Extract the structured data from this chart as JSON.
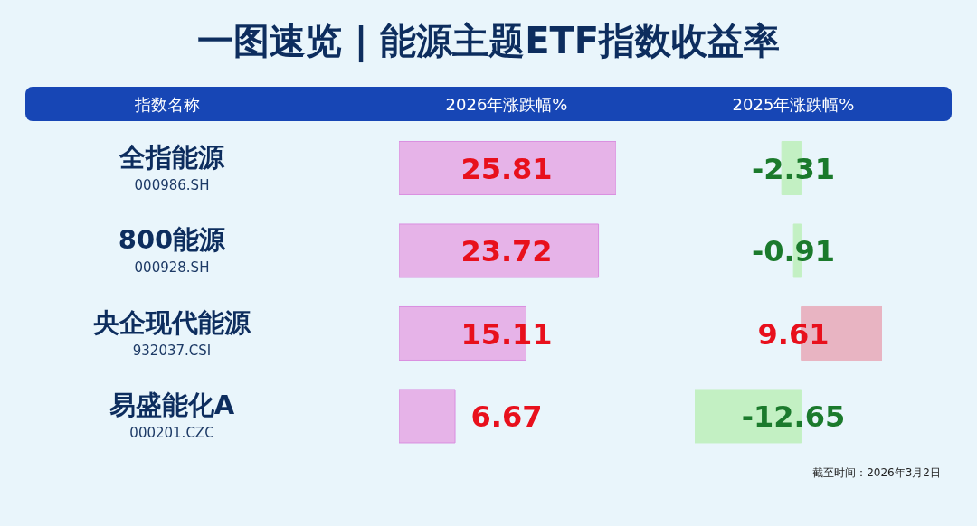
{
  "chart_data": [
    {
      "type": "bar",
      "title": "一图速览 | 能源主题ETF指数收益率",
      "ylabel": "指数名称",
      "xlabel": "2026年涨跌幅%",
      "orientation": "horizontal",
      "tick_labels": "y",
      "data_labels": true,
      "legend": false,
      "grid": false,
      "categories": [
        "全指能源\n000986.SH",
        "800能源\n000928.SH",
        "央企现代能源\n932037.CSI",
        "易盛能化A\n000201.CZC"
      ],
      "values": [
        25.81,
        23.72,
        15.11,
        6.67
      ],
      "colors": [
        "#e6b3e8",
        "#e6b3e8",
        "#e6b3e8",
        "#e6b3e8"
      ]
    },
    {
      "type": "bar",
      "xlabel": "2025年涨跌幅%",
      "orientation": "horizontal",
      "tick_labels": false,
      "data_labels": true,
      "legend": false,
      "grid": false,
      "categories": [
        null,
        null,
        null,
        null
      ],
      "values": [
        -2.31,
        -0.91,
        9.61,
        -12.65
      ],
      "colors": [
        "#c3f0c3",
        "#c3f0c3",
        "#e8b4c2",
        "#c3f0c3"
      ],
      "annotations": [
        "截至时间：2026年3月2日"
      ]
    }
  ]
}
